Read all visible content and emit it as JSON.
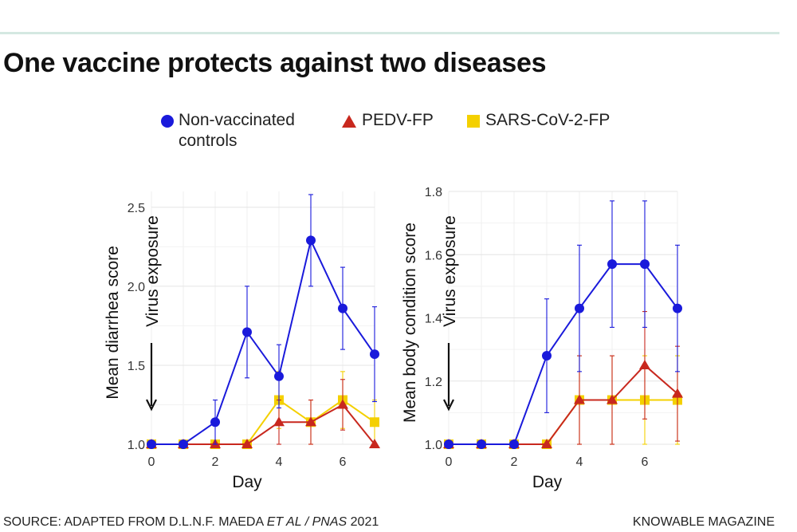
{
  "title": "One vaccine protects against two diseases",
  "legend": [
    {
      "label_lines": [
        "Non-vaccinated",
        "controls"
      ],
      "marker": "circle",
      "color": "#1a1adb"
    },
    {
      "label_lines": [
        "PEDV-FP"
      ],
      "marker": "triangle",
      "color": "#c8281e"
    },
    {
      "label_lines": [
        "SARS-CoV-2-FP"
      ],
      "marker": "square",
      "color": "#f4d000"
    }
  ],
  "chart_data": [
    {
      "type": "line",
      "xlabel": "Day",
      "ylabel": "Mean diarrhea score",
      "annotation": "Virus exposure",
      "xlim": [
        0,
        7
      ],
      "ylim": [
        1.0,
        2.6
      ],
      "xticks": [
        0,
        2,
        4,
        6
      ],
      "yticks": [
        1.0,
        1.5,
        2.0,
        2.5
      ],
      "ytick_labels": [
        "1.0",
        "1.5",
        "2.0",
        "2.5"
      ],
      "x": [
        0,
        1,
        2,
        3,
        4,
        5,
        6,
        7
      ],
      "series": [
        {
          "name": "Non-vaccinated controls",
          "marker": "circle",
          "color": "#1a1adb",
          "values": [
            1.0,
            1.0,
            1.14,
            1.71,
            1.43,
            2.29,
            1.86,
            1.57
          ],
          "err": [
            0,
            0,
            0.14,
            0.29,
            0.2,
            0.29,
            0.26,
            0.3
          ]
        },
        {
          "name": "PEDV-FP",
          "marker": "triangle",
          "color": "#c8281e",
          "values": [
            1.0,
            1.0,
            1.0,
            1.0,
            1.14,
            1.14,
            1.25,
            1.0
          ],
          "err": [
            0,
            0,
            0,
            0,
            0.14,
            0.14,
            0.16,
            0
          ]
        },
        {
          "name": "SARS-CoV-2-FP",
          "marker": "square",
          "color": "#f4d000",
          "values": [
            1.0,
            1.0,
            1.0,
            1.0,
            1.28,
            1.14,
            1.28,
            1.14
          ],
          "err": [
            0,
            0,
            0,
            0,
            0.18,
            0.14,
            0.18,
            0.14
          ]
        }
      ]
    },
    {
      "type": "line",
      "xlabel": "Day",
      "ylabel": "Mean body condition score",
      "annotation": "Virus exposure",
      "xlim": [
        0,
        7
      ],
      "ylim": [
        1.0,
        1.8
      ],
      "xticks": [
        0,
        2,
        4,
        6
      ],
      "yticks": [
        1.0,
        1.2,
        1.4,
        1.6,
        1.8
      ],
      "ytick_labels": [
        "1.0",
        "1.2",
        "1.4",
        "1.6",
        "1.8"
      ],
      "x": [
        0,
        1,
        2,
        3,
        4,
        5,
        6,
        7
      ],
      "series": [
        {
          "name": "Non-vaccinated controls",
          "marker": "circle",
          "color": "#1a1adb",
          "values": [
            1.0,
            1.0,
            1.0,
            1.28,
            1.43,
            1.57,
            1.57,
            1.43
          ],
          "err": [
            0,
            0,
            0,
            0.18,
            0.2,
            0.2,
            0.2,
            0.2
          ]
        },
        {
          "name": "PEDV-FP",
          "marker": "triangle",
          "color": "#c8281e",
          "values": [
            1.0,
            1.0,
            1.0,
            1.0,
            1.14,
            1.14,
            1.25,
            1.16
          ],
          "err": [
            0,
            0,
            0,
            0,
            0.14,
            0.14,
            0.17,
            0.15
          ]
        },
        {
          "name": "SARS-CoV-2-FP",
          "marker": "square",
          "color": "#f4d000",
          "values": [
            1.0,
            1.0,
            1.0,
            1.0,
            1.14,
            1.14,
            1.14,
            1.14
          ],
          "err": [
            0,
            0,
            0,
            0,
            0.14,
            0.14,
            0.14,
            0.14
          ]
        }
      ]
    }
  ],
  "footer": {
    "source_prefix": "SOURCE: ADAPTED FROM D.L.N.F. MAEDA ",
    "source_italic": "ET AL / PNAS",
    "source_suffix": " 2021",
    "publisher": "KNOWABLE MAGAZINE"
  }
}
